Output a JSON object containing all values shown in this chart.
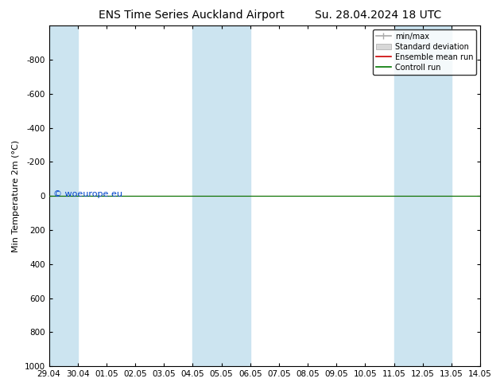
{
  "title": "ENS Time Series Auckland Airport",
  "title2": "Su. 28.04.2024 18 UTC",
  "ylabel": "Min Temperature 2m (°C)",
  "ylim": [
    1000,
    -1000
  ],
  "yticks": [
    -800,
    -600,
    -400,
    -200,
    0,
    200,
    400,
    600,
    800,
    1000
  ],
  "xtick_labels": [
    "29.04",
    "30.04",
    "01.05",
    "02.05",
    "03.05",
    "04.05",
    "05.05",
    "06.05",
    "07.05",
    "08.05",
    "09.05",
    "10.05",
    "11.05",
    "12.05",
    "13.05",
    "14.05"
  ],
  "bg_color": "#ffffff",
  "plot_bg_color": "#ffffff",
  "shaded_bands": [
    {
      "start": 0,
      "end": 1
    },
    {
      "start": 5,
      "end": 7
    },
    {
      "start": 12,
      "end": 14
    }
  ],
  "shaded_band_color": "#cce4f0",
  "green_line_color": "#007700",
  "red_line_color": "#cc0000",
  "minmax_color": "#aaaaaa",
  "stddev_color": "#d8d8d8",
  "legend_labels": [
    "min/max",
    "Standard deviation",
    "Ensemble mean run",
    "Controll run"
  ],
  "watermark": "© woeurope.eu",
  "watermark_color": "#0044cc",
  "title_fontsize": 10,
  "axis_fontsize": 8,
  "tick_fontsize": 7.5
}
